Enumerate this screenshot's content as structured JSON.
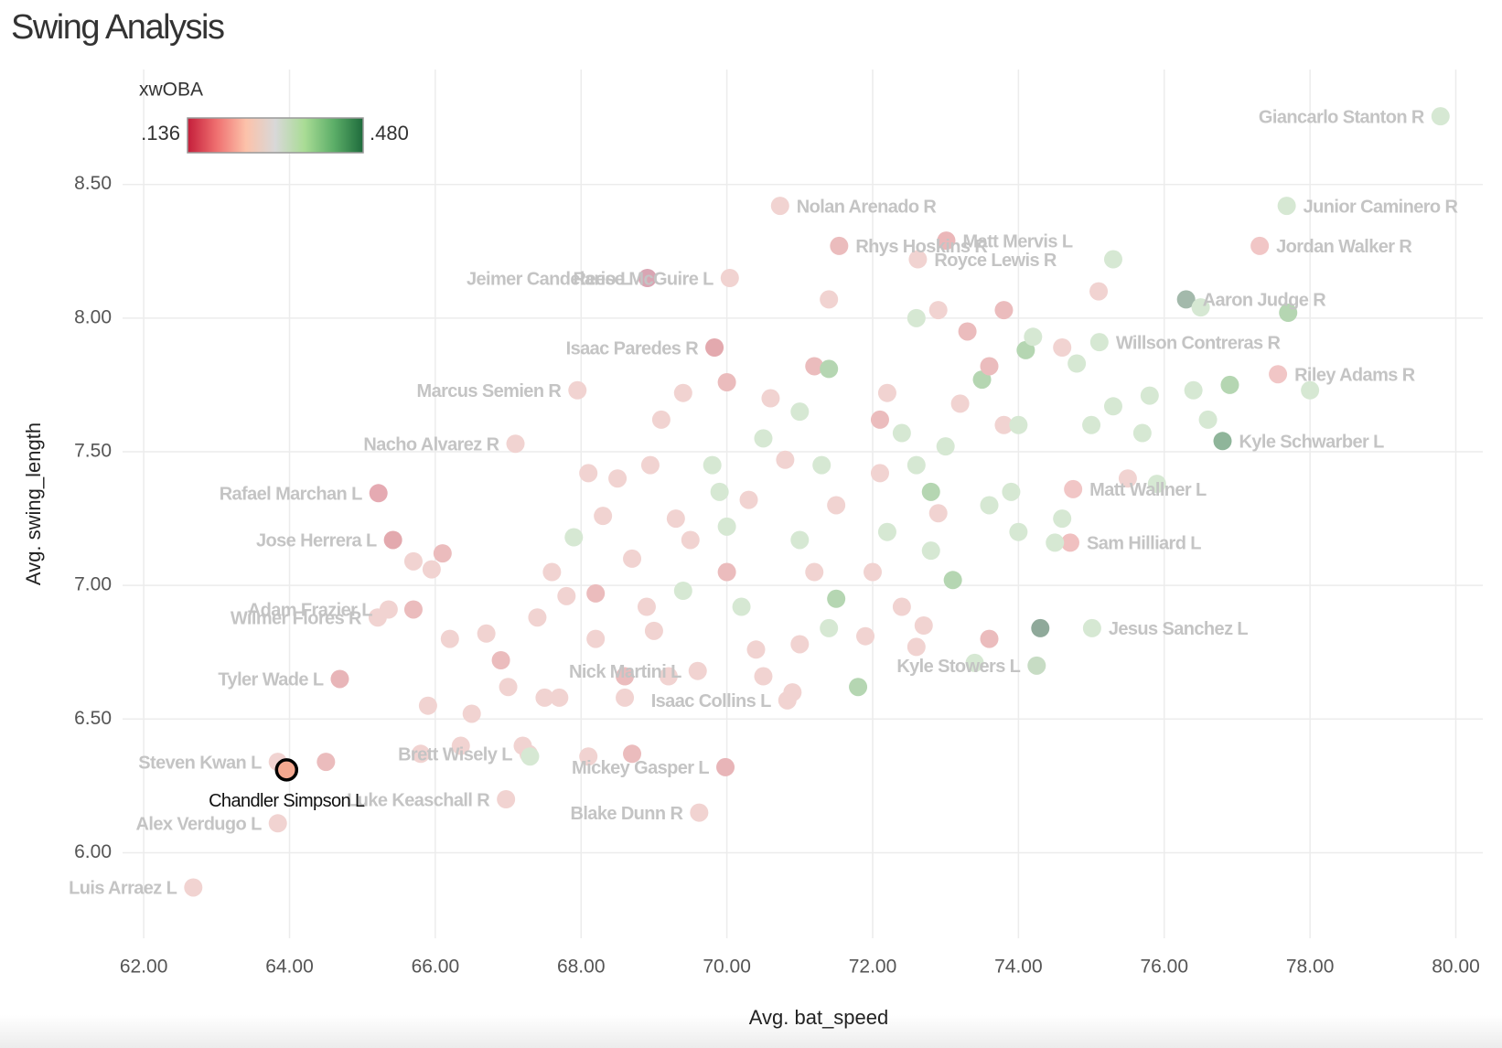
{
  "chart_data": {
    "type": "scatter",
    "title": "Swing Analysis",
    "x_label": "Avg. bat_speed",
    "y_label": "Avg. swing_length",
    "xlim": [
      61.71,
      80.37
    ],
    "ylim": [
      5.68,
      8.93
    ],
    "xticks": [
      {
        "value": 62,
        "label": "62.00"
      },
      {
        "value": 64,
        "label": "64.00"
      },
      {
        "value": 66,
        "label": "66.00"
      },
      {
        "value": 68,
        "label": "68.00"
      },
      {
        "value": 70,
        "label": "70.00"
      },
      {
        "value": 72,
        "label": "72.00"
      },
      {
        "value": 74,
        "label": "74.00"
      },
      {
        "value": 76,
        "label": "76.00"
      },
      {
        "value": 78,
        "label": "78.00"
      },
      {
        "value": 80,
        "label": "80.00"
      }
    ],
    "yticks": [
      {
        "value": 6,
        "label": "6.00"
      },
      {
        "value": 6.5,
        "label": "6.50"
      },
      {
        "value": 7,
        "label": "7.00"
      },
      {
        "value": 7.5,
        "label": "7.50"
      },
      {
        "value": 8,
        "label": "8.00"
      },
      {
        "value": 8.5,
        "label": "8.50"
      }
    ],
    "grid": true,
    "legend": {
      "title": "xwOBA",
      "min_label": ".136",
      "max_label": ".480",
      "colorscale": [
        "#c41e3a",
        "#ef7070",
        "#fcc2aa",
        "#d8d8d8",
        "#a9dc95",
        "#5cae68",
        "#1e6b3c"
      ]
    },
    "series": [
      {
        "points": [
          {
            "label": "Giancarlo Stanton R",
            "x": 79.79,
            "y": 8.755,
            "color": "#d6e8d3"
          },
          {
            "label": "Junior Caminero R",
            "x": 77.68,
            "y": 8.42,
            "color": "#d6e8d3"
          },
          {
            "label": "Jordan Walker R",
            "x": 77.31,
            "y": 8.27,
            "color": "#f1c6c6"
          },
          {
            "label": "Nolan Arenado R",
            "x": 70.73,
            "y": 8.42,
            "color": "#f1d3d1"
          },
          {
            "label": "Matt Mervis L",
            "x": 73.01,
            "y": 8.29,
            "color": "#ebb7b9"
          },
          {
            "label": "Rhys Hoskins R",
            "x": 71.54,
            "y": 8.27,
            "color": "#ebbcbd"
          },
          {
            "label": "Aaron Judge R",
            "x": 76.3,
            "y": 8.07,
            "color": "#a3b9ab"
          },
          {
            "label": "Jeimer Candelario L",
            "x": 68.91,
            "y": 8.15,
            "color": "#d9a5b3"
          },
          {
            "label": "Royce Lewis R",
            "x": 72.62,
            "y": 8.22,
            "color": "#f1d3d1"
          },
          {
            "label": "Reese McGuire L",
            "x": 70.04,
            "y": 8.15,
            "color": "#f1d3d1"
          },
          {
            "label": "Isaac Paredes R",
            "x": 69.83,
            "y": 7.89,
            "color": "#e3a9ae"
          },
          {
            "label": "Willson Contreras R",
            "x": 75.11,
            "y": 7.91,
            "color": "#d6e8d3"
          },
          {
            "label": "Riley Adams R",
            "x": 77.56,
            "y": 7.79,
            "color": "#f1c6c6"
          },
          {
            "label": "Marcus Semien R",
            "x": 67.95,
            "y": 7.73,
            "color": "#f1d3d1"
          },
          {
            "label": "Nacho Alvarez R",
            "x": 67.1,
            "y": 7.53,
            "color": "#f1d3d1"
          },
          {
            "label": "Kyle Schwarber L",
            "x": 76.8,
            "y": 7.54,
            "color": "#8fb59a"
          },
          {
            "label": "Rafael Marchan L",
            "x": 65.22,
            "y": 7.345,
            "color": "#e5aab2"
          },
          {
            "label": "Matt Wallner L",
            "x": 74.75,
            "y": 7.36,
            "color": "#f1c6c6"
          },
          {
            "label": "Jose Herrera L",
            "x": 65.42,
            "y": 7.17,
            "color": "#e3a9ae"
          },
          {
            "label": "Adam Frazier L",
            "x": 65.36,
            "y": 6.91,
            "color": "#f1d3d1"
          },
          {
            "label": "Sam Hilliard L",
            "x": 74.71,
            "y": 7.16,
            "color": "#f0c0c0"
          },
          {
            "label": "Wilmer Flores R",
            "x": 65.21,
            "y": 6.88,
            "color": "#f1d3d1"
          },
          {
            "label": "Jesus Sanchez L",
            "x": 75.01,
            "y": 6.84,
            "color": "#d6e8d3"
          },
          {
            "label": "Kyle Stowers L",
            "x": 74.25,
            "y": 6.7,
            "color": "#c7dcc4"
          },
          {
            "label": "Tyler Wade L",
            "x": 64.69,
            "y": 6.65,
            "color": "#e8b5b8"
          },
          {
            "label": "Nick Martini L",
            "x": 69.6,
            "y": 6.68,
            "color": "#f1d3d1"
          },
          {
            "label": "Brett Wisely L",
            "x": 67.28,
            "y": 6.37,
            "color": "#f1d3d1"
          },
          {
            "label": "Isaac Collins L",
            "x": 70.83,
            "y": 6.57,
            "color": "#f1d3d1"
          },
          {
            "label": "Steven Kwan L",
            "x": 63.84,
            "y": 6.34,
            "color": "#f1d3d1"
          },
          {
            "label": "Mickey Gasper L",
            "x": 69.98,
            "y": 6.32,
            "color": "#e8b5b8"
          },
          {
            "label": "Luke Keaschall R",
            "x": 66.97,
            "y": 6.2,
            "color": "#f1d3d1"
          },
          {
            "label": "Alex Verdugo L",
            "x": 63.84,
            "y": 6.11,
            "color": "#f1d3d1"
          },
          {
            "label": "Blake Dunn R",
            "x": 69.62,
            "y": 6.15,
            "color": "#f1d3d1"
          },
          {
            "label": "Luis Arraez L",
            "x": 62.68,
            "y": 5.87,
            "color": "#f1d3d1"
          },
          {
            "x": 64.5,
            "y": 6.34,
            "color": "#ebbcbd"
          },
          {
            "x": 65.7,
            "y": 7.09,
            "color": "#f1d3d1"
          },
          {
            "x": 65.95,
            "y": 7.06,
            "color": "#f1d3d1"
          },
          {
            "x": 66.1,
            "y": 7.12,
            "color": "#ebbcbd"
          },
          {
            "x": 65.7,
            "y": 6.91,
            "color": "#ebbcbd"
          },
          {
            "x": 66.2,
            "y": 6.8,
            "color": "#f1d3d1"
          },
          {
            "x": 66.5,
            "y": 6.52,
            "color": "#f1d3d1"
          },
          {
            "x": 66.35,
            "y": 6.4,
            "color": "#f1d3d1"
          },
          {
            "x": 65.9,
            "y": 6.55,
            "color": "#f1d3d1"
          },
          {
            "x": 65.8,
            "y": 6.37,
            "color": "#f1d3d1"
          },
          {
            "x": 66.7,
            "y": 6.82,
            "color": "#f1d3d1"
          },
          {
            "x": 66.9,
            "y": 6.72,
            "color": "#ebbcbd"
          },
          {
            "x": 67.0,
            "y": 6.62,
            "color": "#f1d3d1"
          },
          {
            "x": 67.2,
            "y": 6.4,
            "color": "#f1d3d1"
          },
          {
            "x": 67.3,
            "y": 6.36,
            "color": "#d6e8d3"
          },
          {
            "x": 67.5,
            "y": 6.58,
            "color": "#f1d3d1"
          },
          {
            "x": 67.7,
            "y": 6.58,
            "color": "#f1d3d1"
          },
          {
            "x": 67.4,
            "y": 6.88,
            "color": "#f1d3d1"
          },
          {
            "x": 67.6,
            "y": 7.05,
            "color": "#f1d3d1"
          },
          {
            "x": 67.8,
            "y": 6.96,
            "color": "#f1d3d1"
          },
          {
            "x": 67.9,
            "y": 7.18,
            "color": "#d6e8d3"
          },
          {
            "x": 68.1,
            "y": 7.42,
            "color": "#f1d3d1"
          },
          {
            "x": 68.3,
            "y": 7.26,
            "color": "#f1d3d1"
          },
          {
            "x": 68.5,
            "y": 7.4,
            "color": "#f1d3d1"
          },
          {
            "x": 68.7,
            "y": 7.1,
            "color": "#f1d3d1"
          },
          {
            "x": 68.9,
            "y": 6.92,
            "color": "#f1d3d1"
          },
          {
            "x": 68.2,
            "y": 6.97,
            "color": "#ebbcbd"
          },
          {
            "x": 68.2,
            "y": 6.8,
            "color": "#f1d3d1"
          },
          {
            "x": 68.6,
            "y": 6.66,
            "color": "#ebbcbd"
          },
          {
            "x": 68.6,
            "y": 6.58,
            "color": "#f1d3d1"
          },
          {
            "x": 68.7,
            "y": 6.37,
            "color": "#ebbcbd"
          },
          {
            "x": 68.1,
            "y": 6.36,
            "color": "#f1d3d1"
          },
          {
            "x": 68.95,
            "y": 7.45,
            "color": "#f1d3d1"
          },
          {
            "x": 69.1,
            "y": 7.62,
            "color": "#f1d3d1"
          },
          {
            "x": 69.3,
            "y": 7.25,
            "color": "#f1d3d1"
          },
          {
            "x": 69.5,
            "y": 7.17,
            "color": "#f1d3d1"
          },
          {
            "x": 69.4,
            "y": 7.72,
            "color": "#f1d3d1"
          },
          {
            "x": 69.8,
            "y": 7.45,
            "color": "#d6e8d3"
          },
          {
            "x": 69.9,
            "y": 7.35,
            "color": "#d6e8d3"
          },
          {
            "x": 70.0,
            "y": 7.22,
            "color": "#d6e8d3"
          },
          {
            "x": 70.0,
            "y": 7.05,
            "color": "#ebbcbd"
          },
          {
            "x": 70.2,
            "y": 6.92,
            "color": "#d6e8d3"
          },
          {
            "x": 70.4,
            "y": 6.76,
            "color": "#f1d3d1"
          },
          {
            "x": 70.5,
            "y": 6.66,
            "color": "#f1d3d1"
          },
          {
            "x": 70.3,
            "y": 7.32,
            "color": "#f1d3d1"
          },
          {
            "x": 70.5,
            "y": 7.55,
            "color": "#d6e8d3"
          },
          {
            "x": 70.8,
            "y": 7.47,
            "color": "#f1d3d1"
          },
          {
            "x": 70.6,
            "y": 7.7,
            "color": "#f1d3d1"
          },
          {
            "x": 70.0,
            "y": 7.76,
            "color": "#ebbcbd"
          },
          {
            "x": 71.0,
            "y": 7.65,
            "color": "#d6e8d3"
          },
          {
            "x": 71.2,
            "y": 7.82,
            "color": "#ebbcbd"
          },
          {
            "x": 71.4,
            "y": 7.81,
            "color": "#b5d6b2"
          },
          {
            "x": 71.3,
            "y": 7.45,
            "color": "#d6e8d3"
          },
          {
            "x": 71.5,
            "y": 7.3,
            "color": "#f1d3d1"
          },
          {
            "x": 71.0,
            "y": 7.17,
            "color": "#d6e8d3"
          },
          {
            "x": 71.2,
            "y": 7.05,
            "color": "#f1d3d1"
          },
          {
            "x": 71.5,
            "y": 6.95,
            "color": "#b5d6b2"
          },
          {
            "x": 71.4,
            "y": 6.84,
            "color": "#d6e8d3"
          },
          {
            "x": 71.8,
            "y": 6.62,
            "color": "#b5d6b2"
          },
          {
            "x": 71.9,
            "y": 6.81,
            "color": "#f1d3d1"
          },
          {
            "x": 72.0,
            "y": 7.05,
            "color": "#f1d3d1"
          },
          {
            "x": 72.2,
            "y": 7.2,
            "color": "#d6e8d3"
          },
          {
            "x": 72.1,
            "y": 7.42,
            "color": "#f1d3d1"
          },
          {
            "x": 72.1,
            "y": 7.62,
            "color": "#ebbcbd"
          },
          {
            "x": 72.2,
            "y": 7.72,
            "color": "#f1d3d1"
          },
          {
            "x": 72.4,
            "y": 7.57,
            "color": "#d6e8d3"
          },
          {
            "x": 72.6,
            "y": 7.45,
            "color": "#d6e8d3"
          },
          {
            "x": 72.8,
            "y": 7.35,
            "color": "#b5d6b2"
          },
          {
            "x": 72.8,
            "y": 7.13,
            "color": "#d6e8d3"
          },
          {
            "x": 73.1,
            "y": 7.02,
            "color": "#b5d6b2"
          },
          {
            "x": 73.0,
            "y": 7.52,
            "color": "#d6e8d3"
          },
          {
            "x": 73.2,
            "y": 7.68,
            "color": "#f1d3d1"
          },
          {
            "x": 73.5,
            "y": 7.77,
            "color": "#b5d6b2"
          },
          {
            "x": 73.6,
            "y": 7.82,
            "color": "#ebbcbd"
          },
          {
            "x": 73.8,
            "y": 7.6,
            "color": "#f1d3d1"
          },
          {
            "x": 74.0,
            "y": 7.6,
            "color": "#d6e8d3"
          },
          {
            "x": 73.9,
            "y": 7.35,
            "color": "#d6e8d3"
          },
          {
            "x": 74.0,
            "y": 7.2,
            "color": "#d6e8d3"
          },
          {
            "x": 74.5,
            "y": 7.16,
            "color": "#d6e8d3"
          },
          {
            "x": 74.6,
            "y": 7.25,
            "color": "#d6e8d3"
          },
          {
            "x": 74.1,
            "y": 7.88,
            "color": "#b5d6b2"
          },
          {
            "x": 74.2,
            "y": 7.93,
            "color": "#d6e8d3"
          },
          {
            "x": 74.8,
            "y": 7.83,
            "color": "#d6e8d3"
          },
          {
            "x": 75.0,
            "y": 7.6,
            "color": "#d6e8d3"
          },
          {
            "x": 75.5,
            "y": 7.4,
            "color": "#f1d3d1"
          },
          {
            "x": 75.3,
            "y": 7.67,
            "color": "#d6e8d3"
          },
          {
            "x": 75.7,
            "y": 7.57,
            "color": "#d6e8d3"
          },
          {
            "x": 75.9,
            "y": 7.38,
            "color": "#d6e8d3"
          },
          {
            "x": 75.8,
            "y": 7.71,
            "color": "#d6e8d3"
          },
          {
            "x": 76.5,
            "y": 8.04,
            "color": "#d6e8d3"
          },
          {
            "x": 76.4,
            "y": 7.73,
            "color": "#d6e8d3"
          },
          {
            "x": 76.6,
            "y": 7.62,
            "color": "#d6e8d3"
          },
          {
            "x": 76.9,
            "y": 7.75,
            "color": "#b5d6b2"
          },
          {
            "x": 78.0,
            "y": 7.73,
            "color": "#d6e8d3"
          },
          {
            "x": 77.7,
            "y": 8.02,
            "color": "#b5d6b2"
          },
          {
            "x": 72.6,
            "y": 6.77,
            "color": "#f1d3d1"
          },
          {
            "x": 73.4,
            "y": 6.71,
            "color": "#d6e8d3"
          },
          {
            "x": 72.7,
            "y": 6.85,
            "color": "#f1d3d1"
          },
          {
            "x": 73.6,
            "y": 6.8,
            "color": "#ebbcbd"
          },
          {
            "x": 73.8,
            "y": 8.03,
            "color": "#ebbcbd"
          },
          {
            "x": 72.9,
            "y": 8.03,
            "color": "#f1d3d1"
          },
          {
            "x": 71.4,
            "y": 8.07,
            "color": "#f1d3d1"
          },
          {
            "x": 72.6,
            "y": 8.0,
            "color": "#d6e8d3"
          },
          {
            "x": 73.3,
            "y": 7.95,
            "color": "#ebbcbd"
          },
          {
            "x": 74.6,
            "y": 7.89,
            "color": "#f1d3d1"
          },
          {
            "x": 75.1,
            "y": 8.1,
            "color": "#f1d3d1"
          },
          {
            "x": 75.3,
            "y": 8.22,
            "color": "#d6e8d3"
          },
          {
            "x": 74.3,
            "y": 6.84,
            "color": "#8fa99a"
          },
          {
            "x": 71.0,
            "y": 6.78,
            "color": "#f1d3d1"
          },
          {
            "x": 70.9,
            "y": 6.6,
            "color": "#f1d3d1"
          },
          {
            "x": 69.0,
            "y": 6.83,
            "color": "#f1d3d1"
          },
          {
            "x": 69.2,
            "y": 6.66,
            "color": "#f1d3d1"
          },
          {
            "x": 69.4,
            "y": 6.98,
            "color": "#d6e8d3"
          },
          {
            "x": 72.4,
            "y": 6.92,
            "color": "#f1d3d1"
          },
          {
            "x": 72.9,
            "y": 7.27,
            "color": "#f1d3d1"
          },
          {
            "x": 73.6,
            "y": 7.3,
            "color": "#d6e8d3"
          }
        ]
      },
      {
        "points": [
          {
            "label": "Chandler Simpson L",
            "x": 63.96,
            "y": 6.31,
            "color": "#f4a890",
            "outline": "#000000"
          }
        ]
      }
    ]
  }
}
